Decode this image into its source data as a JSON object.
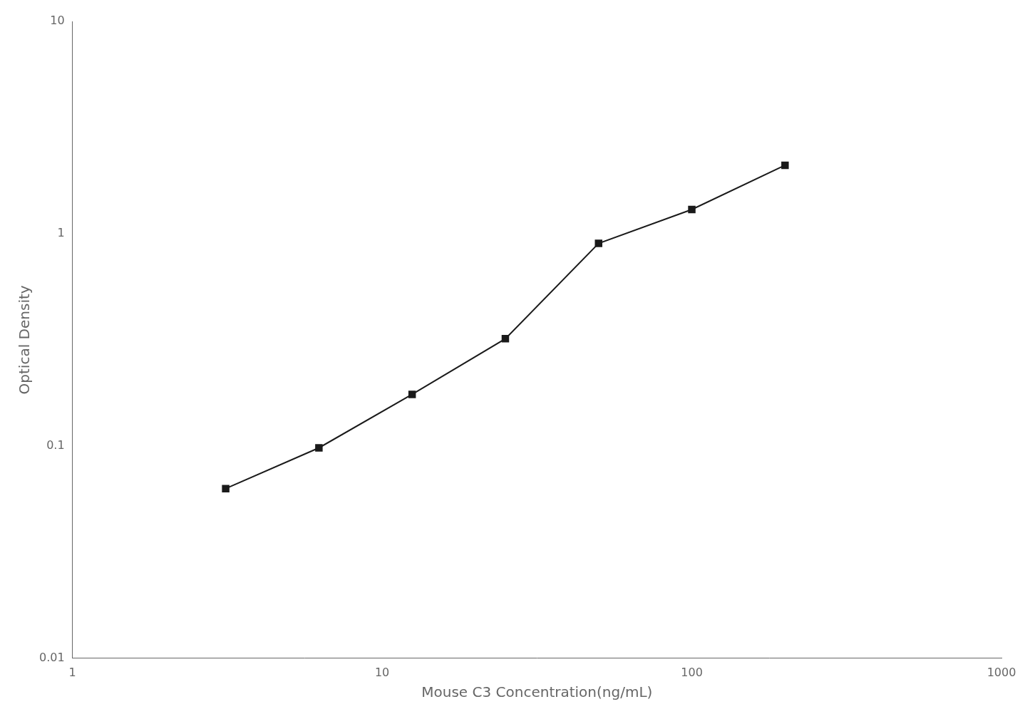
{
  "chart_data": {
    "type": "line",
    "x": [
      3.125,
      6.25,
      12.5,
      25,
      50,
      100,
      200
    ],
    "values": [
      0.063,
      0.098,
      0.175,
      0.32,
      0.9,
      1.3,
      2.1
    ],
    "xlabel": "Mouse C3 Concentration(ng/mL)",
    "ylabel": "Optical Density",
    "xlim": [
      1,
      1000
    ],
    "ylim": [
      0.01,
      10
    ],
    "xticks": [
      1,
      10,
      100,
      1000
    ],
    "yticks": [
      0.01,
      0.1,
      1,
      10
    ],
    "log": true,
    "grid": false,
    "color": "#1a1a1a",
    "marker": "square",
    "line_style": "solid"
  }
}
